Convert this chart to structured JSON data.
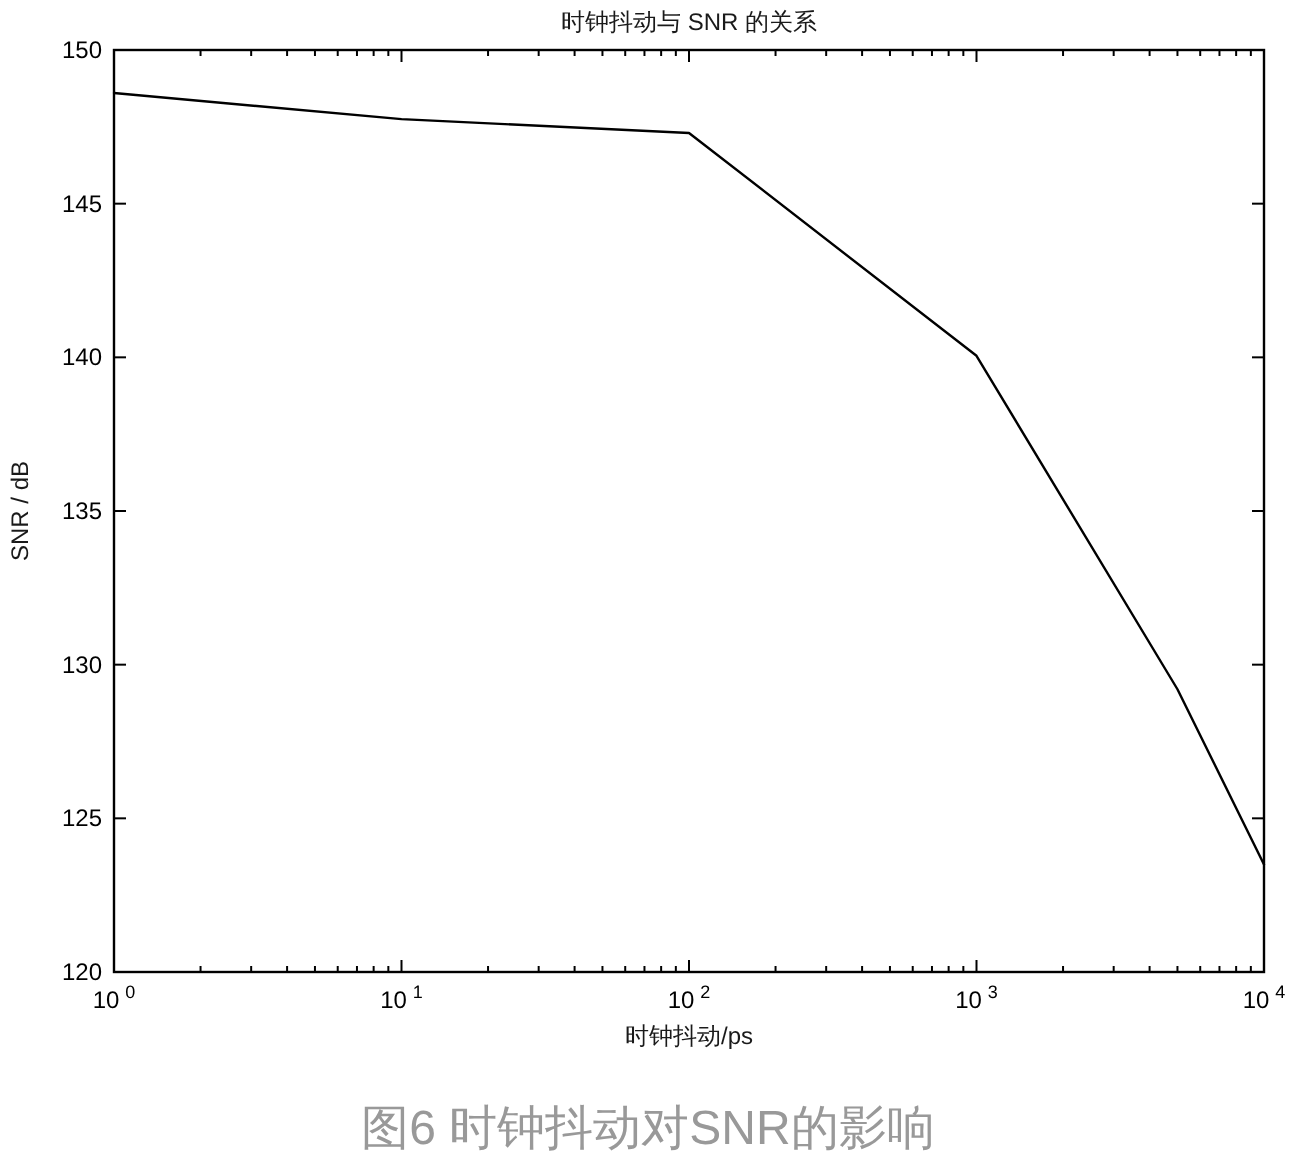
{
  "chart_data": {
    "type": "line",
    "title": "时钟抖动与 SNR 的关系",
    "xlabel": "时钟抖动/ps",
    "ylabel": "SNR / dB",
    "annotations": [
      "图6 时钟抖动对SNR的影响"
    ],
    "x": [
      1,
      10,
      100,
      1000,
      5000,
      10000
    ],
    "series": [
      {
        "color": "#000000",
        "values": [
          148.6,
          147.75,
          147.3,
          140.05,
          129.2,
          123.5
        ]
      }
    ],
    "log": "x",
    "xlim": [
      1,
      10000
    ],
    "xticks": [
      {
        "value": 1,
        "label": "10$^{0}$"
      },
      {
        "value": 10,
        "label": "10$^{1}$"
      },
      {
        "value": 100,
        "label": "10$^{2}$"
      },
      {
        "value": 1000,
        "label": "10$^{3}$"
      },
      {
        "value": 10000,
        "label": "10$^{4}$"
      }
    ],
    "ylim": [
      120,
      150
    ],
    "yticks": [
      120,
      125,
      130,
      135,
      140,
      145,
      150
    ],
    "grid": false,
    "marker": "none",
    "line_style": "solid"
  }
}
